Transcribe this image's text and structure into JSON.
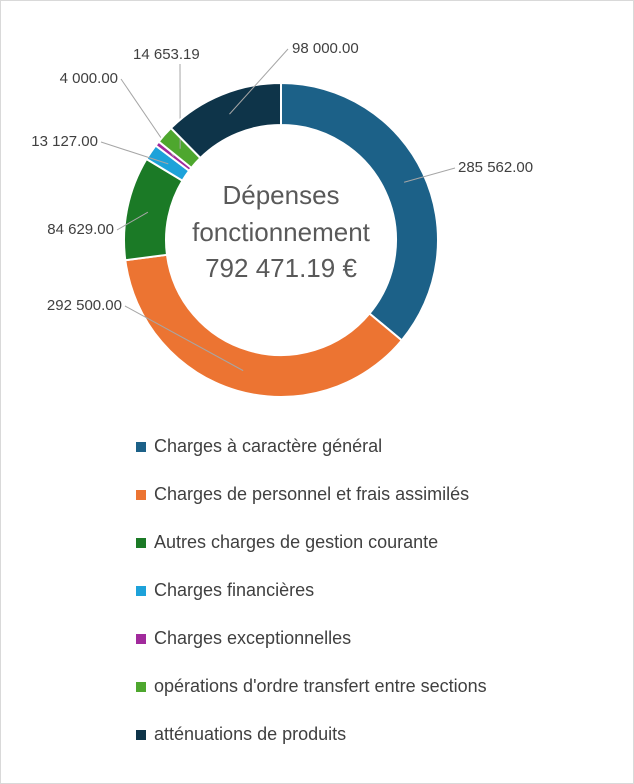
{
  "chart_data": {
    "type": "donut",
    "center_text": [
      "Dépenses",
      "fonctionnement",
      "792 471.19 €"
    ],
    "categories": [
      "Charges à caractère général",
      "Charges de personnel et frais assimilés",
      "Autres charges de gestion courante",
      "Charges financières",
      "Charges exceptionnelles",
      "opérations d'ordre transfert entre sections",
      "atténuations de produits"
    ],
    "values": [
      285562,
      292500,
      84629,
      13127,
      4000,
      14653.19,
      98000
    ],
    "value_labels": [
      "285 562.00",
      "292 500.00",
      "84 629.00",
      "13 127.00",
      "4 000.00",
      "14 653.19",
      "98 000.00"
    ],
    "colors": [
      "#1c6188",
      "#ec7432",
      "#1b7a26",
      "#1da2da",
      "#a12a9c",
      "#4ea72e",
      "#0e3449"
    ],
    "legend": "bottom"
  }
}
